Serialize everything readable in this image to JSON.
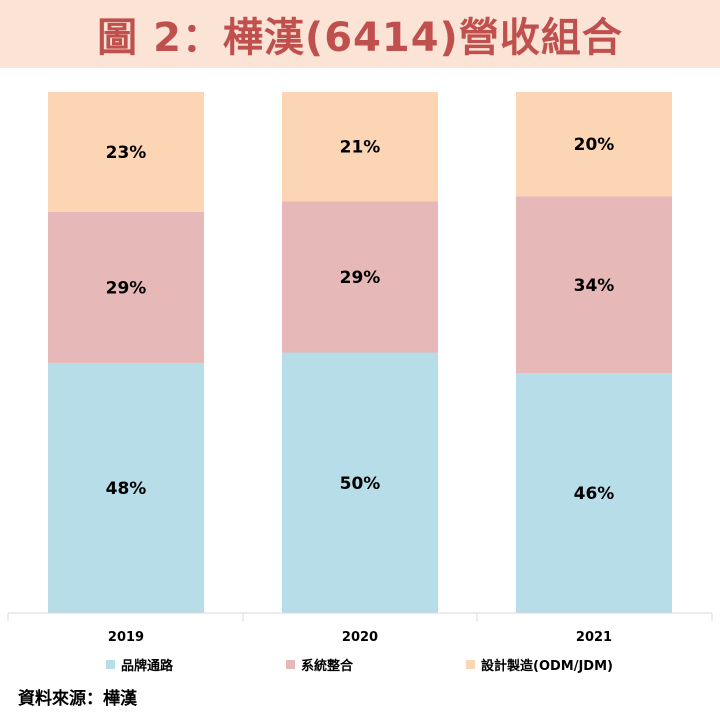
{
  "title": "圖 2：樺漢(6414)營收組合",
  "source_label": "資料來源：樺漢",
  "chart_data": {
    "type": "bar",
    "stacked": true,
    "percent": true,
    "categories": [
      "2019",
      "2020",
      "2021"
    ],
    "series": [
      {
        "name": "品牌通路",
        "values": [
          48,
          50,
          46
        ],
        "color": "#b7dde8",
        "labels": [
          "48%",
          "50%",
          "46%"
        ]
      },
      {
        "name": "系統整合",
        "values": [
          29,
          29,
          34
        ],
        "color": "#e6b8b7",
        "labels": [
          "29%",
          "29%",
          "34%"
        ]
      },
      {
        "name": "設計製造(ODM/JDM)",
        "values": [
          23,
          21,
          20
        ],
        "color": "#fcd5b4",
        "labels": [
          "23%",
          "21%",
          "20%"
        ]
      }
    ],
    "ylim": [
      0,
      100
    ],
    "grid": false,
    "legend_position": "bottom"
  }
}
